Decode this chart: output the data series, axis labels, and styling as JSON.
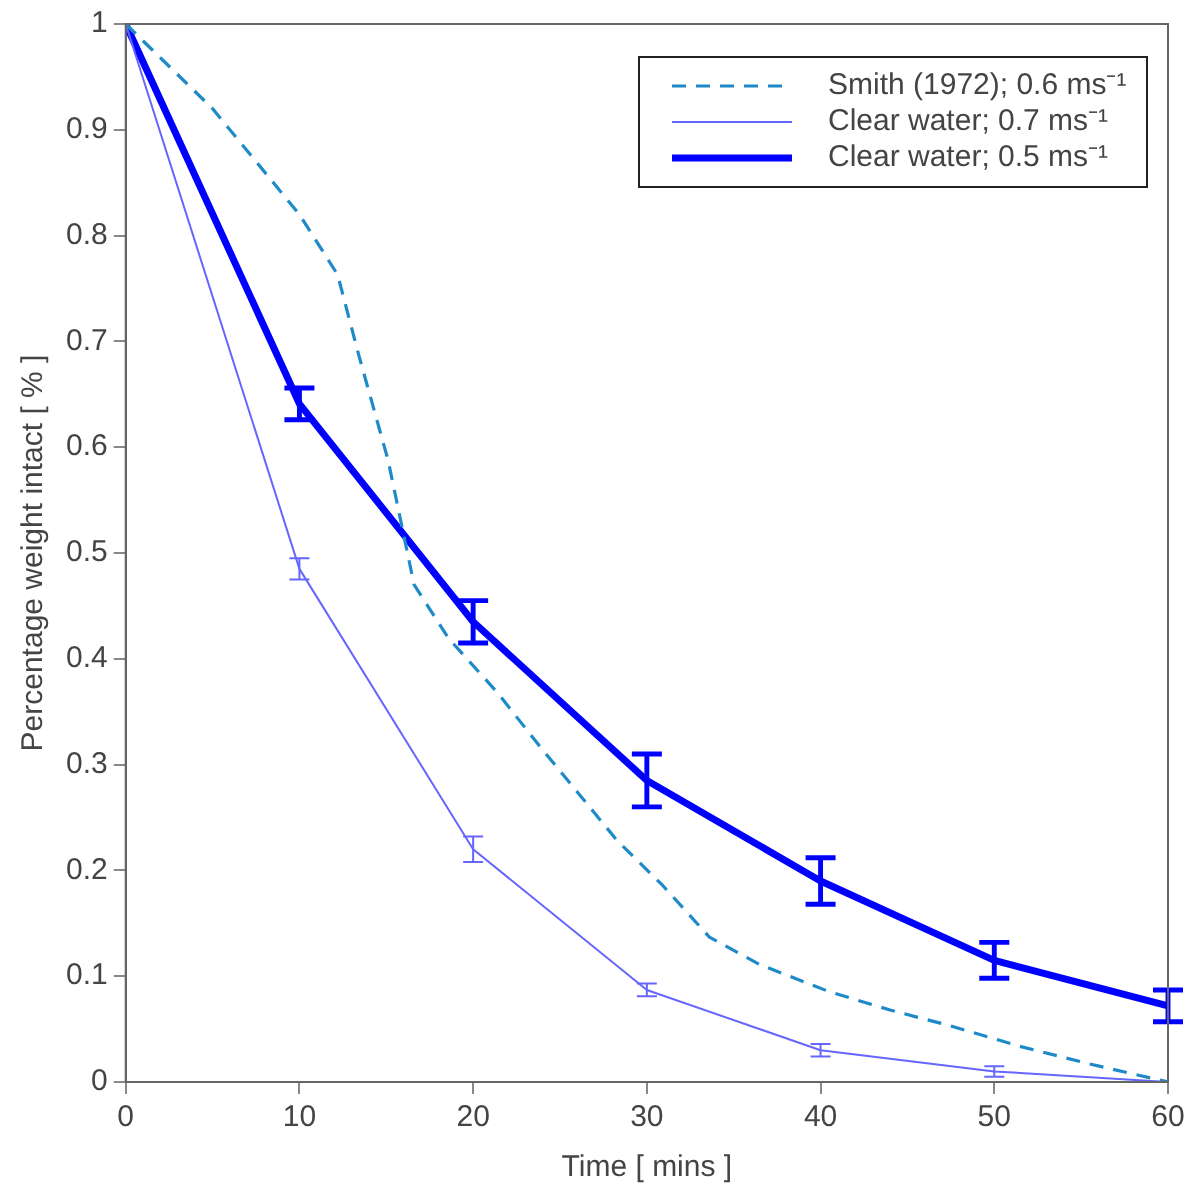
{
  "chart_data": {
    "type": "line",
    "xlabel": "Time [ mins ]",
    "ylabel": "Percentage weight intact [ % ]",
    "xlim": [
      0,
      60
    ],
    "xticks": [
      0,
      10,
      20,
      30,
      40,
      50,
      60
    ],
    "ylim": [
      0,
      1
    ],
    "yticks": [
      0,
      0.1,
      0.2,
      0.3,
      0.4,
      0.5,
      0.6,
      0.7,
      0.8,
      0.9,
      1
    ],
    "grid": false,
    "legend": "top right",
    "series": [
      {
        "name": "Smith (1972); 0.6 ms⁻¹",
        "color": "#1f8ac8",
        "line_style": "dashed",
        "x": [
          0,
          5,
          10,
          12.2,
          13.4,
          15.1,
          16.6,
          18.6,
          21.4,
          23.8,
          26.1,
          28.3,
          30.9,
          33.6,
          36.5,
          40.4,
          44,
          47.5,
          51.4,
          55.5,
          60
        ],
        "values": [
          1,
          0.92,
          0.82,
          0.763,
          0.688,
          0.588,
          0.47,
          0.419,
          0.368,
          0.318,
          0.272,
          0.228,
          0.186,
          0.137,
          0.111,
          0.086,
          0.068,
          0.053,
          0.034,
          0.017,
          0
        ]
      },
      {
        "name": "Clear water; 0.7 ms⁻¹",
        "color": "#6666ff",
        "line_style": "solid",
        "x": [
          0,
          10,
          20,
          30,
          40,
          50,
          60
        ],
        "values": [
          1,
          0.485,
          0.22,
          0.087,
          0.03,
          0.01,
          0
        ],
        "errors": [
          null,
          0.01,
          0.012,
          0.006,
          0.006,
          0.005,
          null
        ]
      },
      {
        "name": "Clear water; 0.5 ms⁻¹",
        "color": "#0000ff",
        "line_style": "solid",
        "x": [
          0,
          10,
          20,
          30,
          40,
          50,
          60
        ],
        "values": [
          1,
          0.641,
          0.435,
          0.285,
          0.19,
          0.115,
          0.072
        ],
        "errors": [
          null,
          0.015,
          0.02,
          0.025,
          0.022,
          0.017,
          0.015
        ]
      }
    ]
  }
}
